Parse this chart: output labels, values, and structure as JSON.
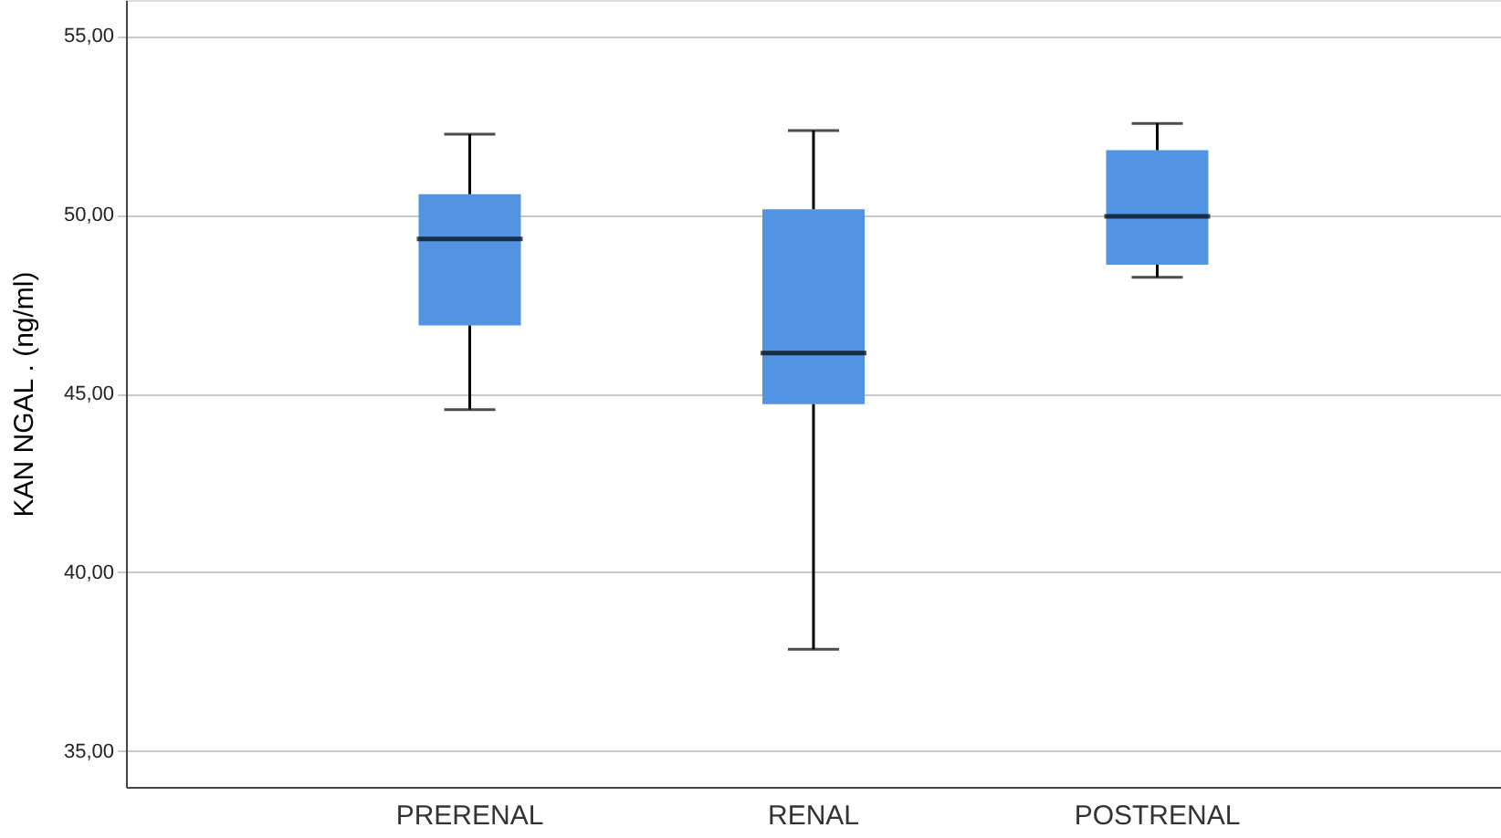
{
  "chart_data": {
    "type": "box",
    "ylabel": "KAN NGAL . (ng/ml)",
    "categories": [
      "PRERENAL",
      "RENAL",
      "POSTRENAL"
    ],
    "color": "#5294e2",
    "boxes": [
      {
        "low": 44.55,
        "q1": 46.9,
        "median": 49.32,
        "q3": 50.57,
        "high": 52.25
      },
      {
        "low": 37.85,
        "q1": 44.7,
        "median": 46.13,
        "q3": 50.15,
        "high": 52.35
      },
      {
        "low": 48.25,
        "q1": 48.6,
        "median": 49.95,
        "q3": 51.8,
        "high": 52.55
      }
    ],
    "ylim": [
      34,
      56
    ],
    "yticks": [
      {
        "value": 35,
        "label": "35,00"
      },
      {
        "value": 40,
        "label": "40,00"
      },
      {
        "value": 45,
        "label": "45,00"
      },
      {
        "value": 50,
        "label": "50,00"
      },
      {
        "value": 55,
        "label": "55,00"
      }
    ],
    "grid": "y"
  }
}
